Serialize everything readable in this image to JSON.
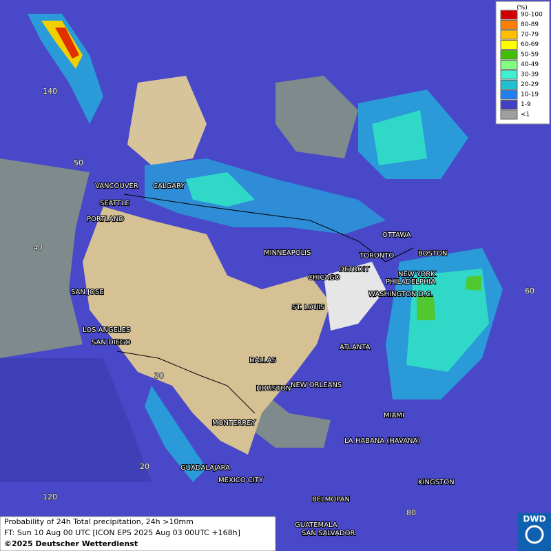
{
  "cities": [
    "VANCOUVER",
    "CALGARY",
    "SEATTLE",
    "PORTLAND",
    "MINNEAPOLIS",
    "OTTAWA",
    "TORONTO",
    "BOSTON",
    "DETROIT",
    "NEW YORK",
    "PHILADELPHIA",
    "CHICAGO",
    "WASHINGTON D.C.",
    "SAN JOSE",
    "ST. LOUIS",
    "LOS ANGELES",
    "SAN DIEGO",
    "ATLANTA",
    "DALLAS",
    "HOUSTON",
    "NEW ORLEANS",
    "MIAMI",
    "MONTERREY",
    "LA HABANA (HAVANA)",
    "GUADALAJARA",
    "MEXICO CITY",
    "KINGSTON",
    "BELMOPAN",
    "GUATEMALA",
    "SAN SALVADOR"
  ],
  "grid_labels": [
    "140",
    "50",
    "40",
    "30",
    "20",
    "120",
    "60",
    "80"
  ],
  "legend": {
    "title": "(%)",
    "items": [
      {
        "label": "90-100",
        "color": "#d00000"
      },
      {
        "label": "80-89",
        "color": "#ff7f00"
      },
      {
        "label": "70-79",
        "color": "#ffc000"
      },
      {
        "label": "60-69",
        "color": "#ffff00"
      },
      {
        "label": "50-59",
        "color": "#40c000"
      },
      {
        "label": "40-49",
        "color": "#80ff80"
      },
      {
        "label": "30-39",
        "color": "#40f0d0"
      },
      {
        "label": "20-29",
        "color": "#20c0d0"
      },
      {
        "label": "10-19",
        "color": "#2080f0"
      },
      {
        "label": "1-9",
        "color": "#4040c0"
      },
      {
        "label": "<1",
        "color": "#a0a0a0"
      }
    ]
  },
  "footer": {
    "line1": "Probability of 24h Total precipitation, 24h >10mm",
    "line2": "FT: Sun 10 Aug 00 UTC [ICON EPS 2025 Aug 03 00UTC +168h]",
    "line3": "©2025 Deutscher Wetterdienst"
  },
  "logo": "DWD"
}
